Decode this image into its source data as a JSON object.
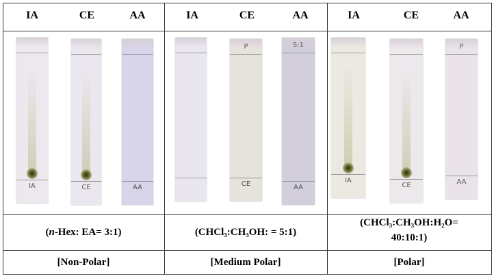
{
  "columns": [
    {
      "headers": [
        "IA",
        "CE",
        "AA"
      ],
      "plates": [
        {
          "bottom": "IA"
        },
        {
          "bottom": "CE"
        },
        {
          "bottom": "AA"
        }
      ],
      "solvent": [
        "(",
        "n",
        "-Hex: EA= 3:1)"
      ],
      "polarity": "[Non-Polar]"
    },
    {
      "headers": [
        "IA",
        "CE",
        "AA"
      ],
      "plates": [
        {},
        {
          "top": "P",
          "bottom": "CE"
        },
        {
          "top": "5:1",
          "bottom": "AA"
        }
      ],
      "solvent": [
        "(CHCl₃:CH₃OH: = 5:1)"
      ],
      "polarity": "[Medium Polar]"
    },
    {
      "headers": [
        "IA",
        "CE",
        "AA"
      ],
      "plates": [
        {
          "bottom": "IA"
        },
        {
          "bottom": "CE"
        },
        {
          "top": "P",
          "bottom": "AA"
        }
      ],
      "solvent": [
        "(CHCl₃:CH₃OH:H₂O=",
        "40:10:1)"
      ],
      "polarity": "[Polar]"
    }
  ]
}
